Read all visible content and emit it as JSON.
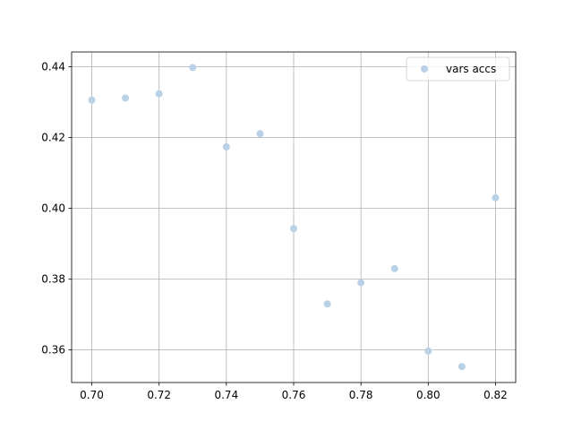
{
  "chart_data": {
    "type": "scatter",
    "title": "",
    "xlabel": "",
    "ylabel": "",
    "xlim": [
      0.694,
      0.826
    ],
    "ylim": [
      0.3508,
      0.4442
    ],
    "xticks": [
      0.7,
      0.72,
      0.74,
      0.76,
      0.78,
      0.8,
      0.82
    ],
    "xtick_labels": [
      "0.70",
      "0.72",
      "0.74",
      "0.76",
      "0.78",
      "0.80",
      "0.82"
    ],
    "yticks": [
      0.36,
      0.38,
      0.4,
      0.42,
      0.44
    ],
    "ytick_labels": [
      "0.36",
      "0.38",
      "0.40",
      "0.42",
      "0.44"
    ],
    "grid": true,
    "legend": {
      "position": "top-right"
    },
    "series": [
      {
        "name": "vars accs",
        "color": "#b9d1e6",
        "x": [
          0.7,
          0.71,
          0.72,
          0.73,
          0.74,
          0.75,
          0.76,
          0.77,
          0.78,
          0.79,
          0.8,
          0.81,
          0.82
        ],
        "y": [
          0.4306,
          0.4312,
          0.4324,
          0.4398,
          0.4174,
          0.4211,
          0.3943,
          0.373,
          0.379,
          0.383,
          0.3597,
          0.3553,
          0.403
        ]
      }
    ]
  }
}
